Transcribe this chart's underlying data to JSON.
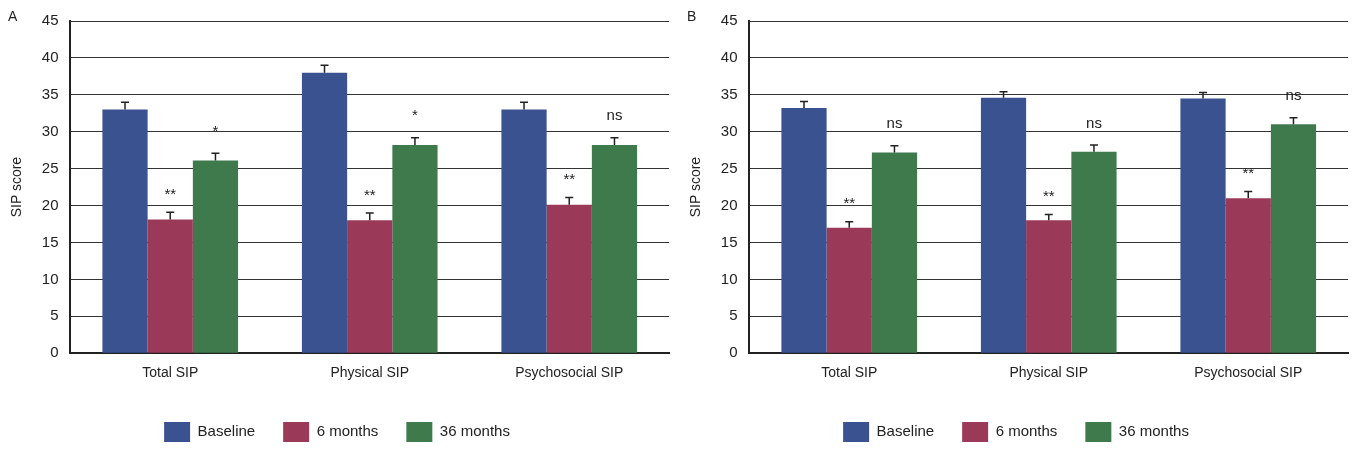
{
  "chart_data": [
    {
      "type": "bar",
      "title": "A",
      "ylabel": "SIP score",
      "categories": [
        "Total SIP",
        "Physical SIP",
        "Psychosocial SIP"
      ],
      "series": [
        {
          "name": "Baseline",
          "color": "#3a5290",
          "values": [
            33,
            38,
            33
          ],
          "errors": [
            [
              33,
              34
            ],
            [
              38,
              39
            ],
            [
              33,
              34
            ]
          ]
        },
        {
          "name": "6 months",
          "color": "#9a3a58",
          "values": [
            18.1,
            18,
            20.1
          ],
          "errors": [
            [
              18.1,
              19.1
            ],
            [
              18,
              19
            ],
            [
              20.1,
              21.1
            ]
          ]
        },
        {
          "name": "36 months",
          "color": "#3f7a4c",
          "values": [
            26.1,
            28.2,
            28.2
          ],
          "errors": [
            [
              26.1,
              27.1
            ],
            [
              28.2,
              29.2
            ],
            [
              28.2,
              29.2
            ]
          ]
        }
      ],
      "ylim": [
        0,
        45
      ],
      "yticks": [
        0,
        5,
        10,
        15,
        20,
        25,
        30,
        35,
        40,
        45
      ],
      "grid": "y",
      "legend": "bottom",
      "annotations": [
        {
          "text": "**",
          "x": "Total SIP",
          "y": 18.1
        },
        "*",
        {
          "text": "**",
          "x": "Physical SIP",
          "y": 18
        },
        "*",
        {
          "text": "**",
          "x": "Psychosocial SIP",
          "y": 20.1
        },
        "ns"
      ]
    },
    {
      "type": "bar",
      "title": "B",
      "ylabel": "SIP score",
      "categories": [
        "Total SIP",
        "Physical SIP",
        "Psychosocial SIP"
      ],
      "series": [
        {
          "name": "Baseline",
          "color": "#3a5290",
          "values": [
            33.2,
            34.6,
            34.5
          ],
          "errors": [
            [
              33.2,
              34.1
            ],
            [
              34.6,
              35.4
            ],
            [
              34.5,
              35.3
            ]
          ]
        },
        {
          "name": "6 months",
          "color": "#9a3a58",
          "values": [
            17,
            18,
            21
          ],
          "errors": [
            [
              17,
              17.8
            ],
            [
              18,
              18.8
            ],
            [
              21,
              21.9
            ]
          ]
        },
        {
          "name": "36 months",
          "color": "#3f7a4c",
          "values": [
            27.2,
            27.3,
            31
          ],
          "errors": [
            [
              27.2,
              28.1
            ],
            [
              27.3,
              28.2
            ],
            [
              31,
              31.9
            ]
          ]
        }
      ],
      "ylim": [
        0,
        45
      ],
      "yticks": [
        0,
        5,
        10,
        15,
        20,
        25,
        30,
        35,
        40,
        45
      ],
      "grid": "y",
      "legend": "bottom",
      "annotations": [
        {
          "text": "**",
          "x": "Total SIP",
          "y": 17
        },
        "ns",
        {
          "text": "**",
          "x": "Physical SIP",
          "y": 18
        },
        "ns",
        {
          "text": "**",
          "x": "Psychosocial SIP",
          "y": 21
        },
        "ns"
      ]
    }
  ]
}
